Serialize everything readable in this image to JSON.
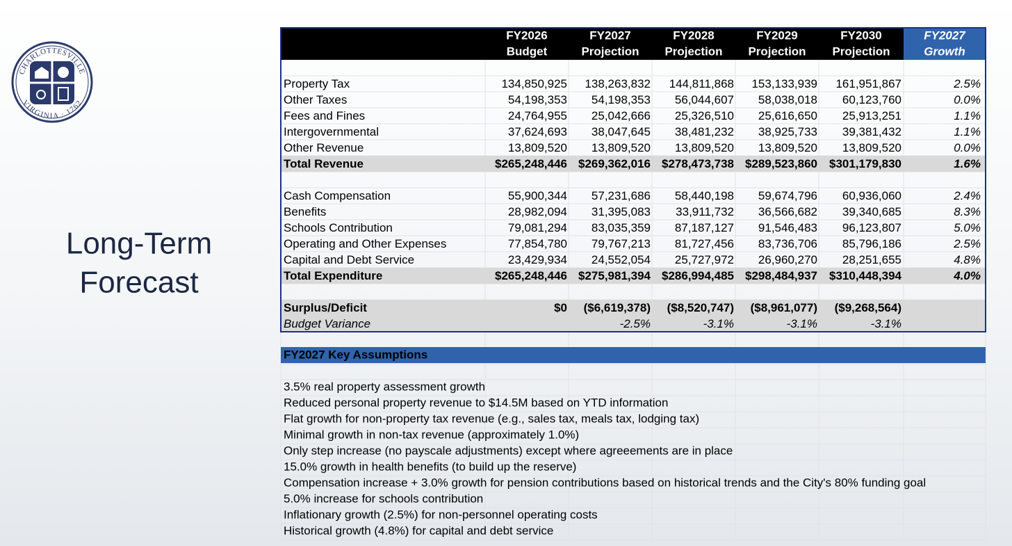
{
  "logo": {
    "top_text": "CHARLOTTESVILLE",
    "bottom_text": "VIRGINIA · 1762"
  },
  "title": {
    "lines": [
      "Long-Term",
      "Forecast"
    ]
  },
  "table": {
    "header": [
      {
        "lines": [
          "FY2026",
          "Budget"
        ]
      },
      {
        "lines": [
          "FY2027",
          "Projection"
        ]
      },
      {
        "lines": [
          "FY2028",
          "Projection"
        ]
      },
      {
        "lines": [
          "FY2029",
          "Projection"
        ]
      },
      {
        "lines": [
          "FY2030",
          "Projection"
        ]
      },
      {
        "lines": [
          "FY2027",
          "Growth"
        ]
      }
    ],
    "sections": [
      {
        "rows": [
          {
            "label": "Property Tax",
            "values": [
              "134,850,925",
              "138,263,832",
              "144,811,868",
              "153,133,939",
              "161,951,867",
              "2.5%"
            ]
          },
          {
            "label": "Other Taxes",
            "values": [
              "54,198,353",
              "54,198,353",
              "56,044,607",
              "58,038,018",
              "60,123,760",
              "0.0%"
            ]
          },
          {
            "label": "Fees and Fines",
            "values": [
              "24,764,955",
              "25,042,666",
              "25,326,510",
              "25,616,650",
              "25,913,251",
              "1.1%"
            ]
          },
          {
            "label": "Intergovernmental",
            "values": [
              "37,624,693",
              "38,047,645",
              "38,481,232",
              "38,925,733",
              "39,381,432",
              "1.1%"
            ]
          },
          {
            "label": "Other Revenue",
            "values": [
              "13,809,520",
              "13,809,520",
              "13,809,520",
              "13,809,520",
              "13,809,520",
              "0.0%"
            ]
          },
          {
            "label": "Total Revenue",
            "bold": true,
            "values": [
              "$265,248,446",
              "$269,362,016",
              "$278,473,738",
              "$289,523,860",
              "$301,179,830",
              "1.6%"
            ]
          }
        ]
      },
      {
        "rows": [
          {
            "label": "Cash Compensation",
            "values": [
              "55,900,344",
              "57,231,686",
              "58,440,198",
              "59,674,796",
              "60,936,060",
              "2.4%"
            ]
          },
          {
            "label": "Benefits",
            "values": [
              "28,982,094",
              "31,395,083",
              "33,911,732",
              "36,566,682",
              "39,340,685",
              "8.3%"
            ]
          },
          {
            "label": "Schools Contribution",
            "values": [
              "79,081,294",
              "83,035,359",
              "87,187,127",
              "91,546,483",
              "96,123,807",
              "5.0%"
            ]
          },
          {
            "label": "Operating and Other Expenses",
            "values": [
              "77,854,780",
              "79,767,213",
              "81,727,456",
              "83,736,706",
              "85,796,186",
              "2.5%"
            ]
          },
          {
            "label": "Capital and Debt Service",
            "values": [
              "23,429,934",
              "24,552,054",
              "25,727,972",
              "26,960,270",
              "28,251,655",
              "4.8%"
            ]
          },
          {
            "label": "Total Expenditure",
            "bold": true,
            "values": [
              "$265,248,446",
              "$275,981,394",
              "$286,994,485",
              "$298,484,937",
              "$310,448,394",
              "4.0%"
            ]
          }
        ]
      },
      {
        "shaded": true,
        "rows": [
          {
            "label": "Surplus/Deficit",
            "bold": true,
            "values": [
              "$0",
              "($6,619,378)",
              "($8,520,747)",
              "($8,961,077)",
              "($9,268,564)",
              null
            ]
          },
          {
            "label": "Budget Variance",
            "italic": true,
            "values": [
              null,
              "-2.5%",
              "-3.1%",
              "-3.1%",
              "-3.1%",
              null
            ]
          }
        ]
      }
    ]
  },
  "assumptions": {
    "title": "FY2027 Key Assumptions",
    "items": [
      "3.5% real property assessment growth",
      "Reduced personal property revenue to $14.5M based on YTD information",
      "Flat growth for non-property tax revenue (e.g., sales tax, meals tax, lodging tax)",
      "Minimal growth in non-tax revenue (approximately 1.0%)",
      "Only step increase (no payscale adjustments) except where agreeements are in place",
      "15.0% growth in health benefits (to build up the reserve)",
      "Compensation increase + 3.0% growth for pension contributions based on historical trends and the City's 80% funding goal",
      "5.0% increase for schools contribution",
      "Inflationary growth (2.5%) for non-personnel operating costs",
      "Historical growth (4.8%) for capital and debt service"
    ]
  }
}
